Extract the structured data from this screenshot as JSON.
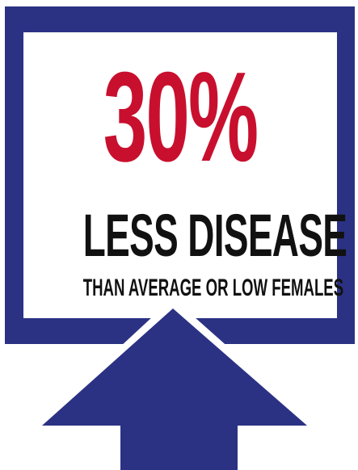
{
  "callout": {
    "stat": "30%",
    "headline": "LESS DISEASE",
    "subline": "THAN AVERAGE OR LOW FEMALES"
  },
  "colors": {
    "frame": "#2b3284",
    "stat": "#c8102e",
    "text": "#111111",
    "panel": "#ffffff"
  },
  "icons": {
    "arrow": "up-arrow-icon"
  }
}
